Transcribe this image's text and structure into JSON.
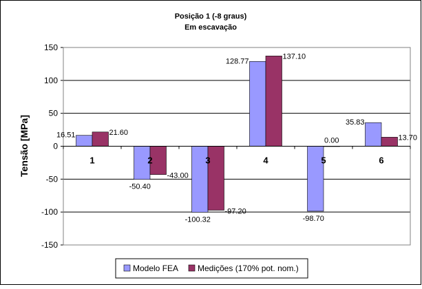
{
  "chart_data": {
    "type": "bar",
    "title": "Posição 1 (-8 graus)",
    "subtitle": "Em escavação",
    "ylabel": "Tensão [MPa]",
    "xlabel": "",
    "ylim": [
      -150,
      150
    ],
    "ytick_step": 50,
    "yticks": [
      "150",
      "100",
      "50",
      "0",
      "-50",
      "-100",
      "-150"
    ],
    "categories": [
      "1",
      "2",
      "3",
      "4",
      "5",
      "6"
    ],
    "grid": true,
    "legend_position": "bottom",
    "series": [
      {
        "name": "Modelo FEA",
        "color": "#9999ff",
        "values": [
          16.51,
          -50.4,
          -100.32,
          128.77,
          -98.7,
          35.83
        ],
        "labels": [
          "16.51",
          "-50.40",
          "-100.32",
          "128.77",
          "-98.70",
          "35.83"
        ]
      },
      {
        "name": "Medições (170% pot. nom.)",
        "color": "#993366",
        "values": [
          21.6,
          -43.0,
          -97.2,
          137.1,
          0.0,
          13.7
        ],
        "labels": [
          "21.60",
          "-43.00",
          "-97.20",
          "137.10",
          "0.00",
          "13.70"
        ]
      }
    ]
  }
}
